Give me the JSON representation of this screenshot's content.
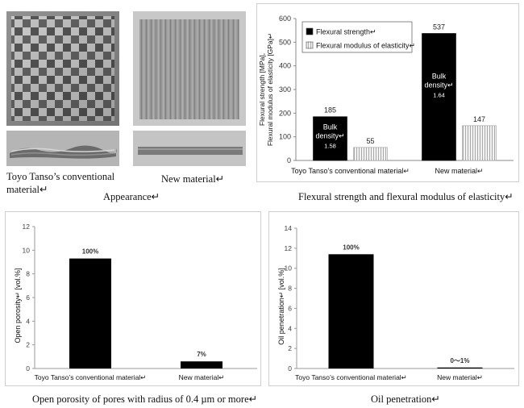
{
  "appearance": {
    "conventional_label": "Toyo Tanso’s conventional material↵",
    "new_label": "New material↵",
    "caption": "Appearance↵"
  },
  "captions": {
    "flexural": "Flexural strength and flexural modulus of elasticity↵",
    "porosity": "Open porosity of pores with radius of 0.4 µm or more↵",
    "oil": "Oil penetration↵"
  },
  "chart_data": [
    {
      "type": "bar",
      "categories": [
        "Toyo Tanso’s conventional material↵",
        "New material↵"
      ],
      "series": [
        {
          "name": "Flexural strength↵",
          "values": [
            185,
            537
          ],
          "color": "#000000"
        },
        {
          "name": "Flexural modulus of elasticity↵",
          "values": [
            55,
            147
          ],
          "color": "#e6e6e6"
        }
      ],
      "ylabel": "Flexural strength [MPa], Flexural modulus of elasticity [GPa]↵",
      "ylim": [
        0,
        600
      ],
      "yticks": [
        0,
        100,
        200,
        300,
        400,
        500,
        600
      ],
      "bar_annotations": [
        {
          "text": "Bulk density↵",
          "value": "1.58"
        },
        {
          "text": "Bulk density↵",
          "value": "1.64"
        }
      ],
      "legend_position": "top-left",
      "grid": false
    },
    {
      "type": "bar",
      "categories": [
        "Toyo Tanso’s conventional material↵",
        "New material↵"
      ],
      "values": [
        9.3,
        0.6
      ],
      "data_labels": [
        "100%",
        "7%"
      ],
      "ylabel": "Open porosity↵ [vol.%]",
      "ylim": [
        0,
        12
      ],
      "yticks": [
        0,
        2,
        4,
        6,
        8,
        10,
        12
      ],
      "grid": false
    },
    {
      "type": "bar",
      "categories": [
        "Toyo Tanso’s conventional material↵",
        "New material↵"
      ],
      "values": [
        11.4,
        0.1
      ],
      "data_labels": [
        "100%",
        "0〜1%"
      ],
      "ylabel": "Oil penetration↵ [vol.%]",
      "ylim": [
        0,
        14
      ],
      "yticks": [
        0,
        2,
        4,
        6,
        8,
        10,
        12,
        14
      ],
      "grid": false
    }
  ]
}
